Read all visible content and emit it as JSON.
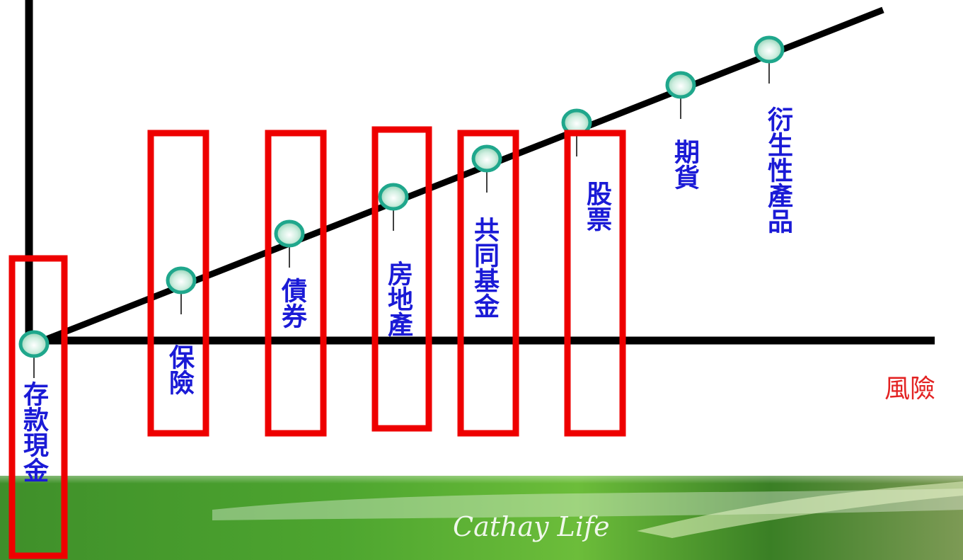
{
  "diagram": {
    "axis_label": "風險",
    "brand_text": "Cathay Life",
    "items": [
      {
        "label": "存款現金",
        "highlighted": true
      },
      {
        "label": "保險",
        "highlighted": true
      },
      {
        "label": "債券",
        "highlighted": true
      },
      {
        "label": "房地產",
        "highlighted": true
      },
      {
        "label": "共同基金",
        "highlighted": true
      },
      {
        "label": "股票",
        "highlighted": true
      },
      {
        "label": "期貨",
        "highlighted": false
      },
      {
        "label": "衍生性產品",
        "highlighted": false
      }
    ],
    "colors": {
      "axis": "#000000",
      "highlight_box": "#ee0000",
      "label_text": "#1a1ad6",
      "axis_label": "#e32222",
      "node_fill": "#a8e2c8",
      "node_stroke": "#1fa78c",
      "banner_dark": "#2d7a1c",
      "banner_light": "#8fd14a"
    }
  }
}
